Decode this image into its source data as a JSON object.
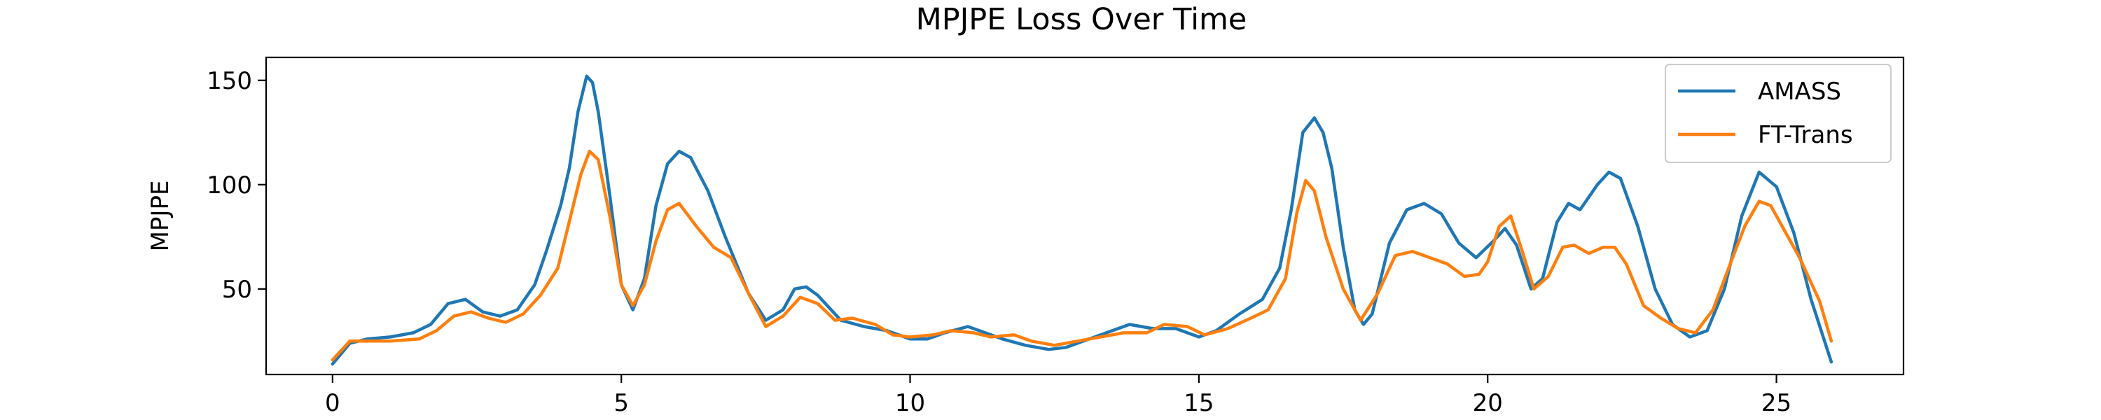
{
  "chart_data": {
    "type": "line",
    "title": "MPJPE Loss Over Time",
    "xlabel": "",
    "ylabel": "MPJPE",
    "xlim": [
      -1.15,
      27.2
    ],
    "ylim": [
      9,
      161
    ],
    "xticks": [
      0,
      5,
      10,
      15,
      20,
      25
    ],
    "yticks": [
      50,
      100,
      150
    ],
    "grid": false,
    "legend_position": "top-right",
    "series": [
      {
        "name": "AMASS",
        "color": "#1f77b4",
        "points": [
          [
            0,
            14
          ],
          [
            0.3,
            24
          ],
          [
            0.6,
            26
          ],
          [
            1,
            27
          ],
          [
            1.4,
            29
          ],
          [
            1.7,
            33
          ],
          [
            2,
            43
          ],
          [
            2.3,
            45
          ],
          [
            2.6,
            39
          ],
          [
            2.9,
            37
          ],
          [
            3.2,
            40
          ],
          [
            3.5,
            52
          ],
          [
            3.7,
            68
          ],
          [
            3.95,
            90
          ],
          [
            4.1,
            108
          ],
          [
            4.25,
            135
          ],
          [
            4.4,
            152
          ],
          [
            4.5,
            149
          ],
          [
            4.6,
            135
          ],
          [
            4.8,
            95
          ],
          [
            5.0,
            52
          ],
          [
            5.2,
            40
          ],
          [
            5.4,
            55
          ],
          [
            5.6,
            90
          ],
          [
            5.8,
            110
          ],
          [
            6.0,
            116
          ],
          [
            6.2,
            113
          ],
          [
            6.5,
            97
          ],
          [
            6.8,
            75
          ],
          [
            7.2,
            48
          ],
          [
            7.5,
            35
          ],
          [
            7.8,
            40
          ],
          [
            8.0,
            50
          ],
          [
            8.2,
            51
          ],
          [
            8.4,
            47
          ],
          [
            8.8,
            35
          ],
          [
            9.2,
            32
          ],
          [
            9.6,
            30
          ],
          [
            10,
            26
          ],
          [
            10.3,
            26
          ],
          [
            10.6,
            29
          ],
          [
            11,
            32
          ],
          [
            11.3,
            29
          ],
          [
            11.6,
            26
          ],
          [
            12,
            23
          ],
          [
            12.4,
            21
          ],
          [
            12.7,
            22
          ],
          [
            13.1,
            26
          ],
          [
            13.5,
            30
          ],
          [
            13.8,
            33
          ],
          [
            14.2,
            31
          ],
          [
            14.6,
            31
          ],
          [
            15.0,
            27
          ],
          [
            15.3,
            30
          ],
          [
            15.7,
            38
          ],
          [
            16.1,
            45
          ],
          [
            16.4,
            60
          ],
          [
            16.6,
            88
          ],
          [
            16.8,
            125
          ],
          [
            17.0,
            132
          ],
          [
            17.15,
            125
          ],
          [
            17.3,
            108
          ],
          [
            17.5,
            70
          ],
          [
            17.7,
            40
          ],
          [
            17.85,
            33
          ],
          [
            18.0,
            38
          ],
          [
            18.3,
            72
          ],
          [
            18.6,
            88
          ],
          [
            18.9,
            91
          ],
          [
            19.2,
            86
          ],
          [
            19.5,
            72
          ],
          [
            19.8,
            65
          ],
          [
            20.1,
            73
          ],
          [
            20.3,
            79
          ],
          [
            20.5,
            71
          ],
          [
            20.75,
            50
          ],
          [
            20.95,
            55
          ],
          [
            21.2,
            82
          ],
          [
            21.4,
            91
          ],
          [
            21.6,
            88
          ],
          [
            21.9,
            100
          ],
          [
            22.1,
            106
          ],
          [
            22.3,
            103
          ],
          [
            22.6,
            80
          ],
          [
            22.9,
            50
          ],
          [
            23.2,
            33
          ],
          [
            23.5,
            27
          ],
          [
            23.8,
            30
          ],
          [
            24.1,
            50
          ],
          [
            24.4,
            85
          ],
          [
            24.7,
            106
          ],
          [
            25.0,
            99
          ],
          [
            25.3,
            77
          ],
          [
            25.6,
            45
          ],
          [
            25.95,
            15
          ]
        ]
      },
      {
        "name": "FT-Trans",
        "color": "#ff7f0e",
        "points": [
          [
            0,
            16
          ],
          [
            0.3,
            25
          ],
          [
            0.6,
            25
          ],
          [
            1,
            25
          ],
          [
            1.5,
            26
          ],
          [
            1.8,
            30
          ],
          [
            2.1,
            37
          ],
          [
            2.4,
            39
          ],
          [
            2.7,
            36
          ],
          [
            3.0,
            34
          ],
          [
            3.3,
            38
          ],
          [
            3.6,
            47
          ],
          [
            3.9,
            60
          ],
          [
            4.15,
            88
          ],
          [
            4.3,
            105
          ],
          [
            4.45,
            116
          ],
          [
            4.6,
            112
          ],
          [
            4.8,
            85
          ],
          [
            5.0,
            52
          ],
          [
            5.2,
            42
          ],
          [
            5.4,
            52
          ],
          [
            5.6,
            73
          ],
          [
            5.8,
            88
          ],
          [
            6.0,
            91
          ],
          [
            6.3,
            80
          ],
          [
            6.6,
            70
          ],
          [
            6.9,
            65
          ],
          [
            7.2,
            48
          ],
          [
            7.5,
            32
          ],
          [
            7.8,
            37
          ],
          [
            8.1,
            46
          ],
          [
            8.4,
            43
          ],
          [
            8.7,
            35
          ],
          [
            9.0,
            36
          ],
          [
            9.4,
            33
          ],
          [
            9.7,
            28
          ],
          [
            10,
            27
          ],
          [
            10.4,
            28
          ],
          [
            10.7,
            30
          ],
          [
            11.1,
            29
          ],
          [
            11.4,
            27
          ],
          [
            11.8,
            28
          ],
          [
            12.1,
            25
          ],
          [
            12.5,
            23
          ],
          [
            12.9,
            25
          ],
          [
            13.3,
            27
          ],
          [
            13.7,
            29
          ],
          [
            14.1,
            29
          ],
          [
            14.4,
            33
          ],
          [
            14.8,
            32
          ],
          [
            15.1,
            28
          ],
          [
            15.5,
            31
          ],
          [
            15.9,
            36
          ],
          [
            16.2,
            40
          ],
          [
            16.5,
            55
          ],
          [
            16.7,
            87
          ],
          [
            16.85,
            102
          ],
          [
            17.0,
            97
          ],
          [
            17.2,
            75
          ],
          [
            17.5,
            50
          ],
          [
            17.8,
            35
          ],
          [
            18.1,
            48
          ],
          [
            18.4,
            66
          ],
          [
            18.7,
            68
          ],
          [
            19.0,
            65
          ],
          [
            19.3,
            62
          ],
          [
            19.6,
            56
          ],
          [
            19.85,
            57
          ],
          [
            20.0,
            63
          ],
          [
            20.2,
            80
          ],
          [
            20.4,
            85
          ],
          [
            20.6,
            68
          ],
          [
            20.8,
            50
          ],
          [
            21.05,
            56
          ],
          [
            21.3,
            70
          ],
          [
            21.5,
            71
          ],
          [
            21.75,
            67
          ],
          [
            22.0,
            70
          ],
          [
            22.2,
            70
          ],
          [
            22.4,
            62
          ],
          [
            22.7,
            42
          ],
          [
            23.0,
            36
          ],
          [
            23.3,
            31
          ],
          [
            23.6,
            29
          ],
          [
            23.9,
            40
          ],
          [
            24.2,
            62
          ],
          [
            24.45,
            80
          ],
          [
            24.7,
            92
          ],
          [
            24.9,
            90
          ],
          [
            25.1,
            80
          ],
          [
            25.4,
            65
          ],
          [
            25.75,
            44
          ],
          [
            25.95,
            25
          ]
        ]
      }
    ]
  }
}
